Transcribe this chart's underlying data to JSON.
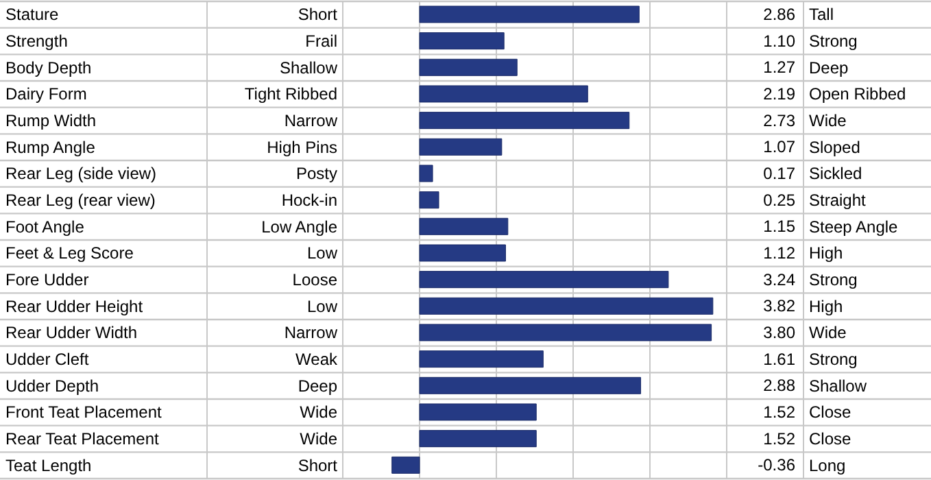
{
  "chart_data": {
    "type": "bar",
    "orientation": "horizontal",
    "categories": [
      "Stature",
      "Strength",
      "Body Depth",
      "Dairy Form",
      "Rump Width",
      "Rump Angle",
      "Rear Leg (side view)",
      "Rear Leg (rear view)",
      "Foot Angle",
      "Feet & Leg Score",
      "Fore Udder",
      "Rear Udder Height",
      "Rear Udder Width",
      "Udder Cleft",
      "Udder Depth",
      "Front Teat Placement",
      "Rear Teat Placement",
      "Teat Length"
    ],
    "values": [
      2.86,
      1.1,
      1.27,
      2.19,
      2.73,
      1.07,
      0.17,
      0.25,
      1.15,
      1.12,
      3.24,
      3.82,
      3.8,
      1.61,
      2.88,
      1.52,
      1.52,
      -0.36
    ],
    "value_labels": [
      "2.86",
      "1.10",
      "1.27",
      "2.19",
      "2.73",
      "1.07",
      "0.17",
      "0.25",
      "1.15",
      "1.12",
      "3.24",
      "3.82",
      "3.80",
      "1.61",
      "2.88",
      "1.52",
      "1.52",
      "-0.36"
    ],
    "color": "#253a84",
    "xlim": [
      -1,
      4
    ],
    "xticks": [
      {
        "value": -1,
        "label": null
      },
      {
        "value": 0,
        "label": null
      },
      {
        "value": 1,
        "label": null
      },
      {
        "value": 2,
        "label": null
      },
      {
        "value": 3,
        "label": null
      },
      {
        "value": 4,
        "label": null
      }
    ],
    "tick_labels": "y",
    "grid": true,
    "annotations": [
      "Short",
      "Tall",
      "Frail",
      "Strong",
      "Shallow",
      "Deep",
      "Tight Ribbed",
      "Open Ribbed",
      "Narrow",
      "Wide",
      "High Pins",
      "Sloped",
      "Posty",
      "Sickled",
      "Hock-in",
      "Straight",
      "Low Angle",
      "Steep Angle",
      "Low",
      "High",
      "Loose",
      "Strong",
      "Low",
      "High",
      "Narrow",
      "Wide",
      "Weak",
      "Strong",
      "Deep",
      "Shallow",
      "Wide",
      "Close",
      "Wide",
      "Close",
      "Short",
      "Long"
    ]
  }
}
